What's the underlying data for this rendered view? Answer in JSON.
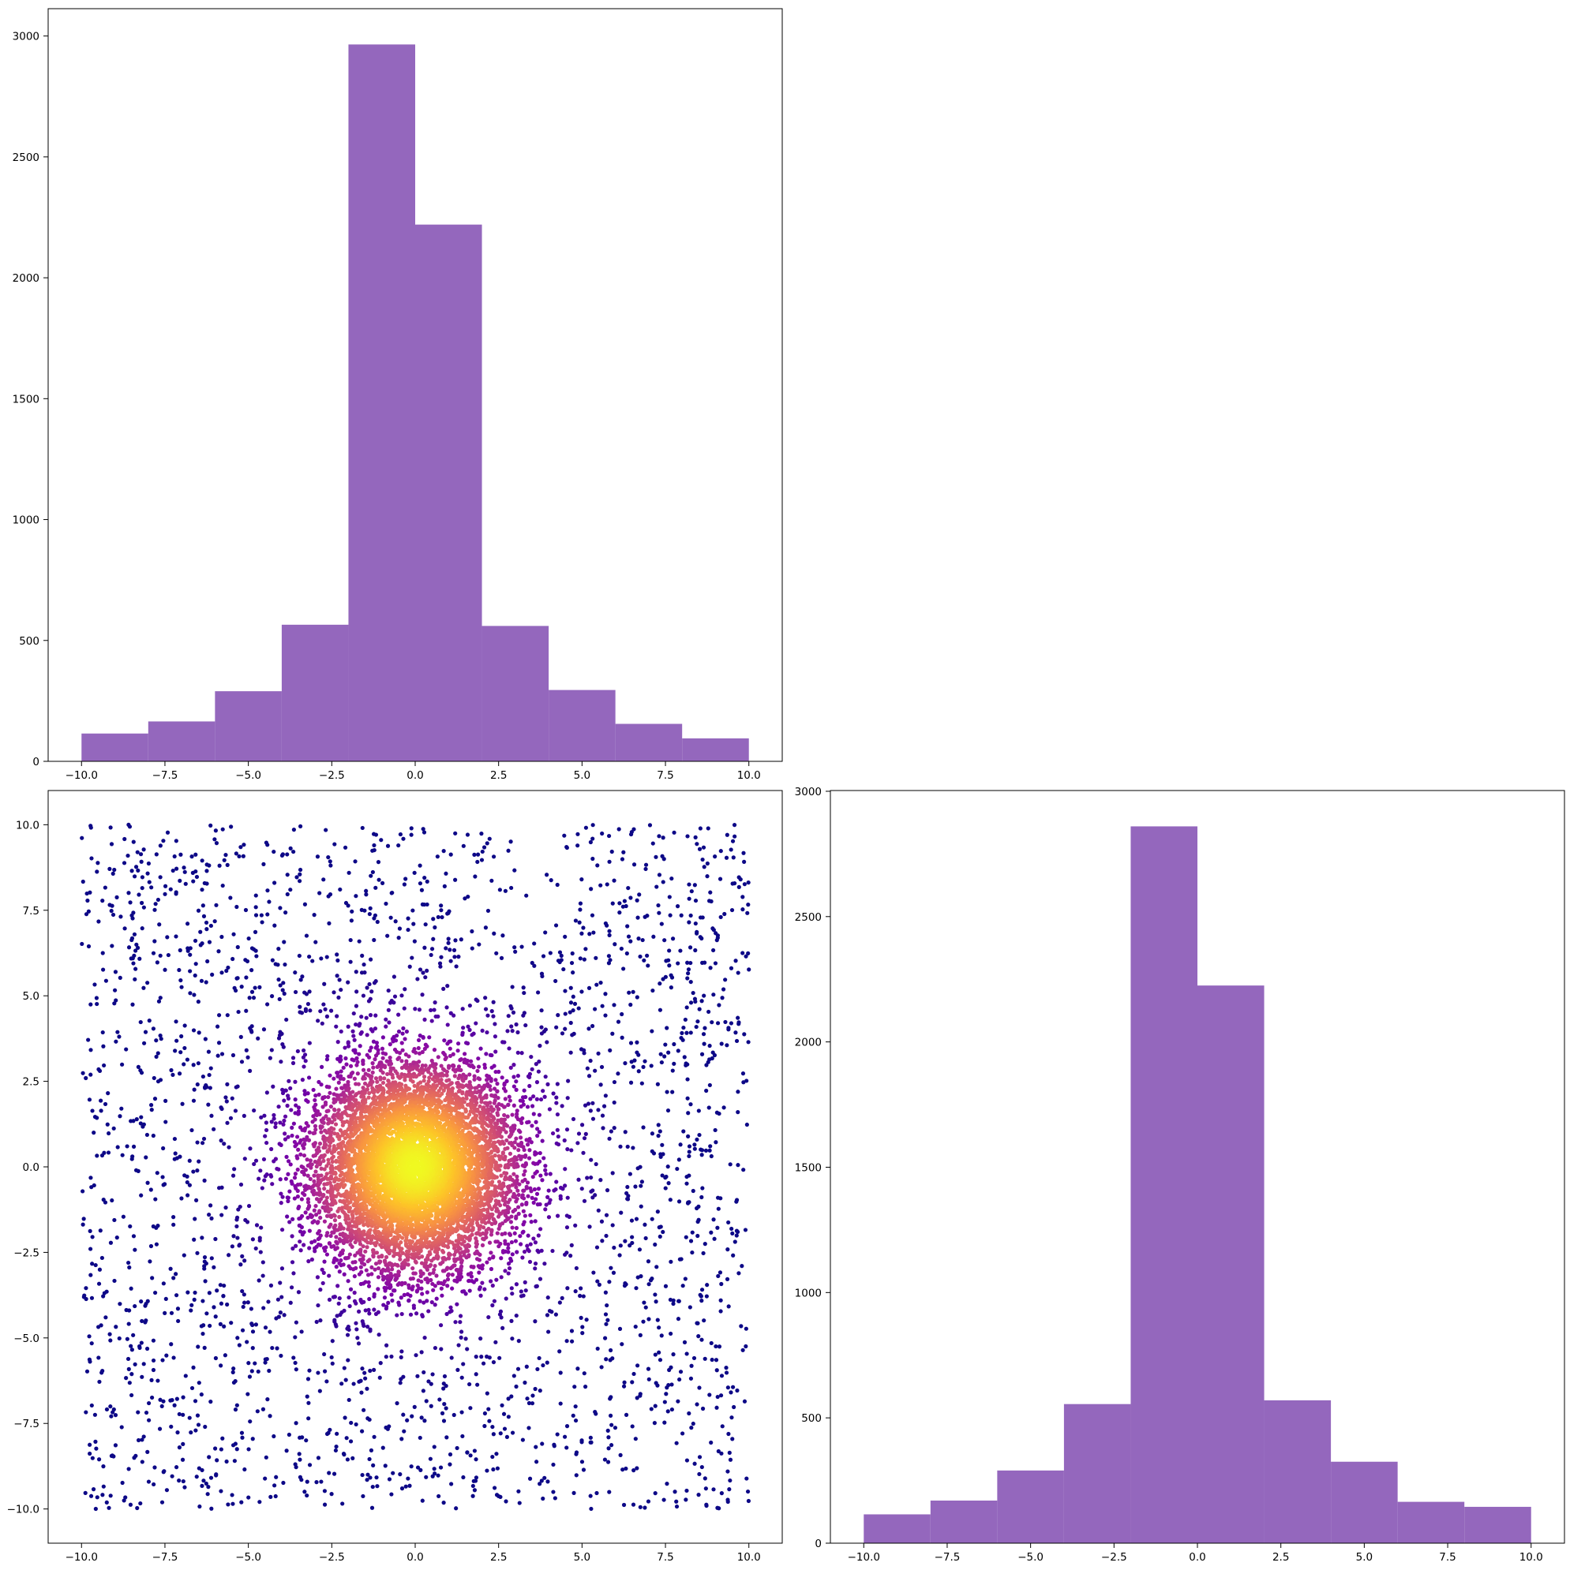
{
  "chart_data": [
    {
      "type": "bar",
      "subplot": "top-left",
      "bin_edges": [
        -10.0,
        -8.0,
        -6.0,
        -4.0,
        -2.0,
        0.0,
        2.0,
        4.0,
        6.0,
        8.0,
        10.0
      ],
      "values": [
        115,
        165,
        290,
        565,
        2965,
        2220,
        560,
        295,
        155,
        95
      ],
      "color": "#9467bd",
      "xlim": [
        -11.0,
        11.0
      ],
      "ylim": [
        0,
        3113
      ],
      "xticks": [
        -10.0,
        -7.5,
        -5.0,
        -2.5,
        0.0,
        2.5,
        5.0,
        7.5,
        10.0
      ],
      "xtick_labels": [
        "−10.0",
        "−7.5",
        "−5.0",
        "−2.5",
        "0.0",
        "2.5",
        "5.0",
        "7.5",
        "10.0"
      ],
      "yticks": [
        0,
        500,
        1000,
        1500,
        2000,
        2500,
        3000
      ],
      "ytick_labels": [
        "0",
        "500",
        "1000",
        "1500",
        "2000",
        "2500",
        "3000"
      ],
      "grid": false
    },
    {
      "type": "scatter",
      "subplot": "bottom-left",
      "colormap": "plasma",
      "color_by": "density (bright yellow at the center cluster, dark purple at the edges)",
      "point_count": 10000,
      "description": "points drawn uniformly in [-10, 10] x [-10, 10] with a dense central cluster around (0, 0)",
      "distribution": {
        "cluster_center": [
          0,
          0
        ],
        "cluster_spread": 1.5,
        "core_fraction": 0.74,
        "uniform_range": [
          -10,
          10
        ]
      },
      "xlim": [
        -11.0,
        11.0
      ],
      "ylim": [
        -11.0,
        11.0
      ],
      "xticks": [
        -10.0,
        -7.5,
        -5.0,
        -2.5,
        0.0,
        2.5,
        5.0,
        7.5,
        10.0
      ],
      "xtick_labels": [
        "−10.0",
        "−7.5",
        "−5.0",
        "−2.5",
        "0.0",
        "2.5",
        "5.0",
        "7.5",
        "10.0"
      ],
      "yticks": [
        -10.0,
        -7.5,
        -5.0,
        -2.5,
        0.0,
        2.5,
        5.0,
        7.5,
        10.0
      ],
      "ytick_labels": [
        "−10.0",
        "−7.5",
        "−5.0",
        "−2.5",
        "0.0",
        "2.5",
        "5.0",
        "7.5",
        "10.0"
      ],
      "grid": false
    },
    {
      "type": "bar",
      "subplot": "bottom-right",
      "bin_edges": [
        -10.0,
        -8.0,
        -6.0,
        -4.0,
        -2.0,
        0.0,
        2.0,
        4.0,
        6.0,
        8.0,
        10.0
      ],
      "values": [
        115,
        170,
        290,
        555,
        2860,
        2225,
        570,
        325,
        165,
        145
      ],
      "color": "#9467bd",
      "xlim": [
        -11.0,
        11.0
      ],
      "ylim": [
        0,
        3003
      ],
      "xticks": [
        -10.0,
        -7.5,
        -5.0,
        -2.5,
        0.0,
        2.5,
        5.0,
        7.5,
        10.0
      ],
      "xtick_labels": [
        "−10.0",
        "−7.5",
        "−5.0",
        "−2.5",
        "0.0",
        "2.5",
        "5.0",
        "7.5",
        "10.0"
      ],
      "yticks": [
        0,
        500,
        1000,
        1500,
        2000,
        2500,
        3000
      ],
      "ytick_labels": [
        "0",
        "500",
        "1000",
        "1500",
        "2000",
        "2500",
        "3000"
      ],
      "grid": false
    }
  ]
}
